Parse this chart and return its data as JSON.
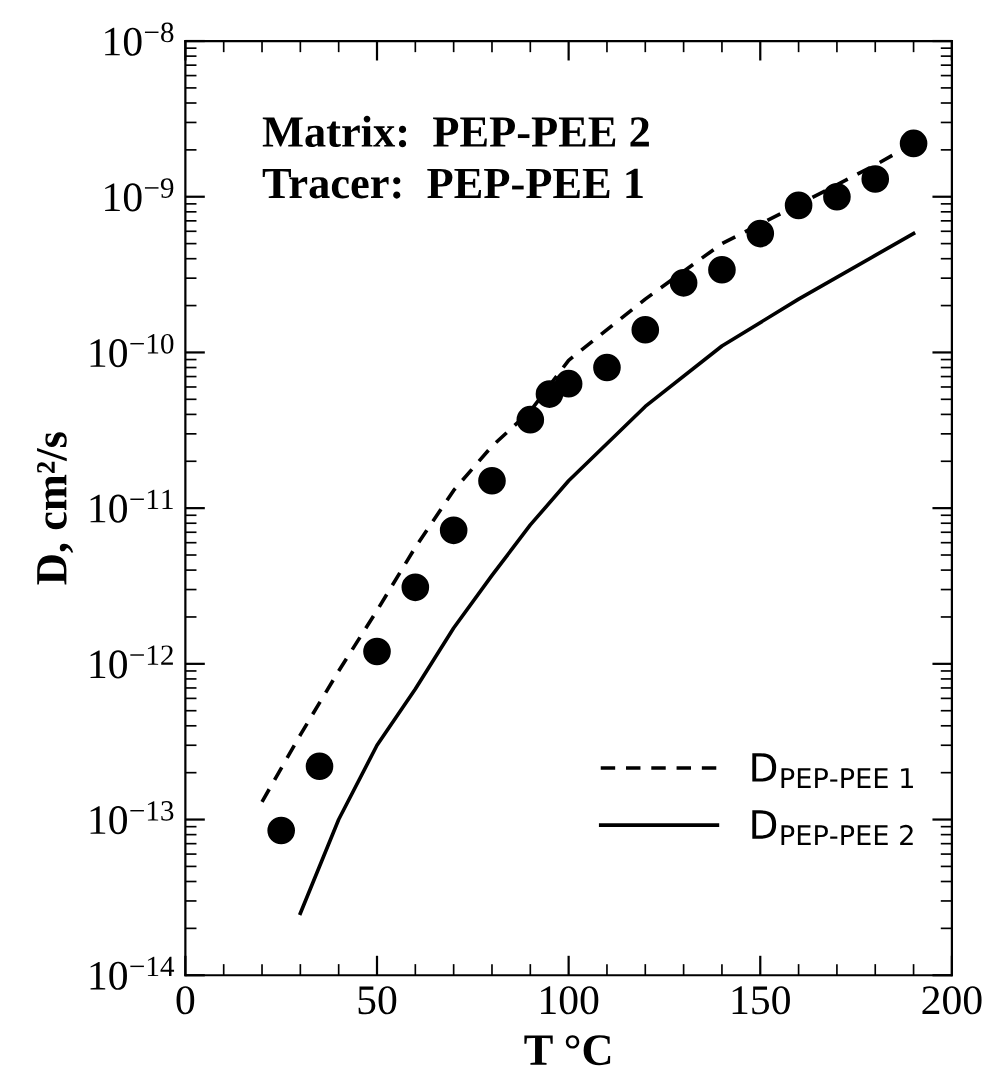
{
  "chart_data": {
    "type": "scatter",
    "xlabel": "T °C",
    "ylabel": "D, cm²/s",
    "log": "y",
    "grid": false,
    "legend": "bottom right",
    "xlim": [
      0,
      200
    ],
    "xticks": [
      0,
      50,
      100,
      150,
      200
    ],
    "ylim": [
      1e-14,
      1e-08
    ],
    "yticks": [
      {
        "value": 1e-14,
        "label": "10$^{−14}$"
      },
      {
        "value": 1e-13,
        "label": "10$^{−13}$"
      },
      {
        "value": 1e-12,
        "label": "10$^{−12}$"
      },
      {
        "value": 1e-11,
        "label": "10$^{−11}$"
      },
      {
        "value": 1e-10,
        "label": "10$^{−10}$"
      },
      {
        "value": 1e-09,
        "label": "10$^{−9}$"
      },
      {
        "value": 1e-08,
        "label": "10$^{−8}$"
      }
    ],
    "annotations": [
      "Matrix:  PEP-PEE 2",
      "Tracer:  PEP-PEE 1"
    ],
    "series": [
      {
        "marker": "circle",
        "color": "#000000",
        "x": [
          25,
          35,
          50,
          60,
          70,
          80,
          90,
          95,
          100,
          110,
          120,
          130,
          140,
          150,
          160,
          170,
          180,
          190
        ],
        "values": [
          8.5e-14,
          2.2e-13,
          1.2e-12,
          3.1e-12,
          7.2e-12,
          1.5e-11,
          3.7e-11,
          5.4e-11,
          6.3e-11,
          8e-11,
          1.4e-10,
          2.8e-10,
          3.4e-10,
          5.8e-10,
          8.8e-10,
          1e-09,
          1.3e-09,
          2.2e-09
        ]
      },
      {
        "type": "line",
        "name": "D$_{PEP-PEE 1}$",
        "line_style": "dashed",
        "marker": "none",
        "color": "#000000",
        "x": [
          20,
          30,
          40,
          50,
          60,
          70,
          80,
          90,
          100,
          120,
          140,
          160,
          180,
          190
        ],
        "values": [
          1.3e-13,
          3.5e-13,
          9e-13,
          2.2e-12,
          5.6e-12,
          1.3e-11,
          2.5e-11,
          4.2e-11,
          8.9e-11,
          2.2e-10,
          5e-10,
          8.9e-10,
          1.6e-09,
          2.2e-09
        ]
      },
      {
        "type": "line",
        "name": "D$_{PEP-PEE 2}$",
        "line_style": "solid",
        "marker": "none",
        "color": "#000000",
        "x": [
          30,
          40,
          50,
          60,
          70,
          80,
          90,
          100,
          120,
          140,
          160,
          180,
          190
        ],
        "values": [
          2.5e-14,
          1e-13,
          3e-13,
          6.9e-13,
          1.7e-12,
          3.7e-12,
          7.8e-12,
          1.5e-11,
          4.5e-11,
          1.1e-10,
          2.2e-10,
          4.2e-10,
          5.8e-10
        ]
      }
    ]
  }
}
